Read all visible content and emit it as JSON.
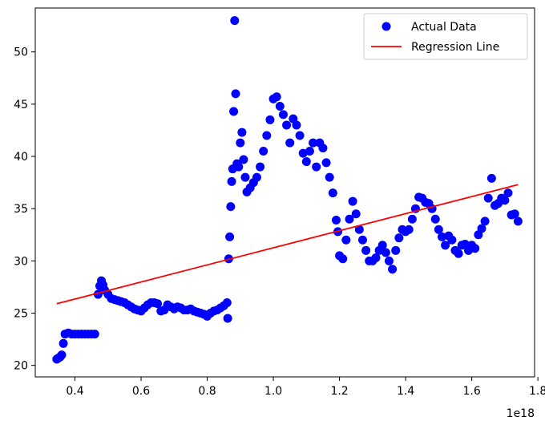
{
  "chart_data": {
    "type": "scatter",
    "title": "",
    "xlabel": "",
    "ylabel": "",
    "x_offset_label": "1e18",
    "xlim": [
      0.28,
      1.79
    ],
    "ylim": [
      18.9,
      54.2
    ],
    "x_ticks": [
      0.4,
      0.6,
      0.8,
      1.0,
      1.2,
      1.4,
      1.6,
      1.8
    ],
    "x_tick_labels": [
      "0.4",
      "0.6",
      "0.8",
      "1.0",
      "1.2",
      "1.4",
      "1.6",
      "1.8"
    ],
    "y_ticks": [
      20,
      25,
      30,
      35,
      40,
      45,
      50
    ],
    "y_tick_labels": [
      "20",
      "25",
      "30",
      "35",
      "40",
      "45",
      "50"
    ],
    "grid": false,
    "legend_position": "top-right",
    "colors": {
      "scatter": "#0000ff",
      "line": "#ff0000"
    },
    "series": [
      {
        "name": "Actual Data",
        "kind": "scatter",
        "points": [
          [
            0.345,
            20.6
          ],
          [
            0.35,
            20.7
          ],
          [
            0.355,
            20.8
          ],
          [
            0.36,
            21.0
          ],
          [
            0.365,
            22.1
          ],
          [
            0.37,
            23.0
          ],
          [
            0.38,
            23.1
          ],
          [
            0.39,
            23.0
          ],
          [
            0.4,
            23.0
          ],
          [
            0.41,
            23.0
          ],
          [
            0.42,
            23.0
          ],
          [
            0.43,
            23.0
          ],
          [
            0.44,
            23.0
          ],
          [
            0.45,
            23.0
          ],
          [
            0.46,
            23.0
          ],
          [
            0.47,
            26.8
          ],
          [
            0.475,
            27.6
          ],
          [
            0.48,
            28.1
          ],
          [
            0.485,
            27.7
          ],
          [
            0.49,
            27.2
          ],
          [
            0.5,
            26.8
          ],
          [
            0.51,
            26.4
          ],
          [
            0.52,
            26.3
          ],
          [
            0.53,
            26.2
          ],
          [
            0.54,
            26.1
          ],
          [
            0.55,
            26.0
          ],
          [
            0.56,
            25.8
          ],
          [
            0.57,
            25.6
          ],
          [
            0.58,
            25.4
          ],
          [
            0.59,
            25.3
          ],
          [
            0.6,
            25.2
          ],
          [
            0.61,
            25.5
          ],
          [
            0.62,
            25.8
          ],
          [
            0.63,
            26.0
          ],
          [
            0.64,
            26.0
          ],
          [
            0.65,
            25.9
          ],
          [
            0.66,
            25.2
          ],
          [
            0.67,
            25.3
          ],
          [
            0.68,
            25.8
          ],
          [
            0.69,
            25.6
          ],
          [
            0.7,
            25.4
          ],
          [
            0.71,
            25.6
          ],
          [
            0.72,
            25.5
          ],
          [
            0.73,
            25.3
          ],
          [
            0.74,
            25.3
          ],
          [
            0.75,
            25.4
          ],
          [
            0.76,
            25.2
          ],
          [
            0.77,
            25.1
          ],
          [
            0.78,
            25.0
          ],
          [
            0.79,
            24.9
          ],
          [
            0.8,
            24.7
          ],
          [
            0.81,
            25.0
          ],
          [
            0.82,
            25.2
          ],
          [
            0.83,
            25.3
          ],
          [
            0.84,
            25.5
          ],
          [
            0.85,
            25.7
          ],
          [
            0.86,
            26.0
          ],
          [
            0.862,
            24.5
          ],
          [
            0.865,
            30.2
          ],
          [
            0.868,
            32.3
          ],
          [
            0.871,
            35.2
          ],
          [
            0.874,
            37.6
          ],
          [
            0.877,
            38.8
          ],
          [
            0.88,
            44.3
          ],
          [
            0.883,
            53.0
          ],
          [
            0.886,
            46.0
          ],
          [
            0.89,
            39.3
          ],
          [
            0.895,
            39.0
          ],
          [
            0.9,
            41.3
          ],
          [
            0.905,
            42.3
          ],
          [
            0.91,
            39.7
          ],
          [
            0.915,
            38.0
          ],
          [
            0.92,
            36.6
          ],
          [
            0.93,
            37.0
          ],
          [
            0.94,
            37.5
          ],
          [
            0.95,
            38.0
          ],
          [
            0.96,
            39.0
          ],
          [
            0.97,
            40.5
          ],
          [
            0.98,
            42.0
          ],
          [
            0.99,
            43.5
          ],
          [
            1.0,
            45.5
          ],
          [
            1.01,
            45.7
          ],
          [
            1.02,
            44.8
          ],
          [
            1.03,
            44.0
          ],
          [
            1.04,
            43.0
          ],
          [
            1.05,
            41.3
          ],
          [
            1.06,
            43.6
          ],
          [
            1.07,
            43.0
          ],
          [
            1.08,
            42.0
          ],
          [
            1.09,
            40.3
          ],
          [
            1.1,
            39.5
          ],
          [
            1.11,
            40.5
          ],
          [
            1.12,
            41.3
          ],
          [
            1.13,
            39.0
          ],
          [
            1.14,
            41.3
          ],
          [
            1.15,
            40.8
          ],
          [
            1.16,
            39.4
          ],
          [
            1.17,
            38.0
          ],
          [
            1.18,
            36.5
          ],
          [
            1.19,
            33.9
          ],
          [
            1.195,
            32.8
          ],
          [
            1.2,
            30.5
          ],
          [
            1.21,
            30.2
          ],
          [
            1.22,
            32.0
          ],
          [
            1.23,
            34.0
          ],
          [
            1.24,
            35.7
          ],
          [
            1.25,
            34.5
          ],
          [
            1.26,
            33.0
          ],
          [
            1.27,
            32.0
          ],
          [
            1.28,
            31.0
          ],
          [
            1.29,
            30.0
          ],
          [
            1.3,
            30.0
          ],
          [
            1.31,
            30.3
          ],
          [
            1.32,
            31.0
          ],
          [
            1.33,
            31.5
          ],
          [
            1.34,
            30.8
          ],
          [
            1.35,
            30.0
          ],
          [
            1.36,
            29.2
          ],
          [
            1.37,
            31.0
          ],
          [
            1.38,
            32.2
          ],
          [
            1.39,
            33.0
          ],
          [
            1.4,
            32.8
          ],
          [
            1.41,
            33.0
          ],
          [
            1.42,
            34.0
          ],
          [
            1.43,
            35.0
          ],
          [
            1.44,
            36.1
          ],
          [
            1.45,
            36.0
          ],
          [
            1.46,
            35.6
          ],
          [
            1.47,
            35.5
          ],
          [
            1.48,
            35.0
          ],
          [
            1.49,
            34.0
          ],
          [
            1.5,
            33.0
          ],
          [
            1.51,
            32.3
          ],
          [
            1.52,
            31.5
          ],
          [
            1.53,
            32.4
          ],
          [
            1.54,
            32.0
          ],
          [
            1.55,
            31.0
          ],
          [
            1.56,
            30.7
          ],
          [
            1.57,
            31.5
          ],
          [
            1.58,
            31.6
          ],
          [
            1.59,
            31.0
          ],
          [
            1.6,
            31.5
          ],
          [
            1.61,
            31.2
          ],
          [
            1.62,
            32.5
          ],
          [
            1.63,
            33.1
          ],
          [
            1.64,
            33.8
          ],
          [
            1.65,
            36.0
          ],
          [
            1.66,
            37.9
          ],
          [
            1.67,
            35.3
          ],
          [
            1.68,
            35.5
          ],
          [
            1.69,
            36.0
          ],
          [
            1.7,
            35.8
          ],
          [
            1.71,
            36.5
          ],
          [
            1.72,
            34.4
          ],
          [
            1.73,
            34.5
          ],
          [
            1.74,
            33.8
          ]
        ]
      },
      {
        "name": "Regression Line",
        "kind": "line",
        "points": [
          [
            0.345,
            25.9
          ],
          [
            1.74,
            37.3
          ]
        ]
      }
    ]
  }
}
